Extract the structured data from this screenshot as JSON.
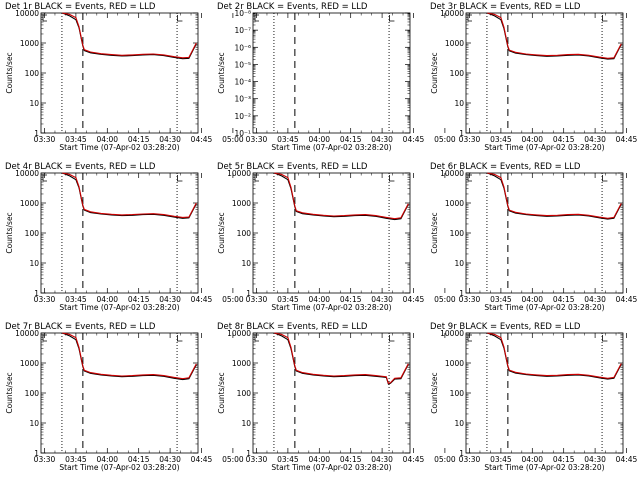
{
  "page": {
    "title": "RHESSI detector count rates, Events vs LLD"
  },
  "colors": {
    "events": "#000000",
    "lld": "#cc0000",
    "axis": "#000000",
    "background": "#ffffff"
  },
  "chart_data": [
    {
      "panel": "det1r",
      "title": "Det 1r BLACK = Events, RED = LLD",
      "type": "line",
      "xlabel": "Start Time (07-Apr-02 03:28:20)",
      "ylabel": "Counts/sec",
      "xticks": [
        "03:30",
        "03:45",
        "04:00",
        "04:15",
        "04:30",
        "04:45",
        "05:00"
      ],
      "yticks": [
        "1",
        "10",
        "100",
        "1000",
        "10000"
      ],
      "ylim": [
        1,
        10000
      ],
      "yscale": "log",
      "xlim_min": [
        -1.67,
        73.33
      ],
      "dotted_lines_min": [
        8.33,
        63.33
      ],
      "dashed_lines_min": [
        18.33
      ],
      "series": [
        {
          "name": "Events",
          "x_min": [
            8.5,
            12,
            15,
            16.5,
            18.3,
            19,
            22,
            27,
            32,
            37,
            42,
            47,
            52,
            57,
            62,
            66,
            69,
            72.5
          ],
          "values": [
            10000,
            8000,
            6000,
            3200,
            800,
            560,
            470,
            420,
            390,
            370,
            380,
            400,
            410,
            380,
            330,
            300,
            310,
            950
          ]
        },
        {
          "name": "LLD",
          "x_min": [
            8.5,
            12,
            15,
            16.5,
            18.3,
            19,
            22,
            27,
            32,
            37,
            42,
            47,
            52,
            57,
            62,
            66,
            69,
            72.5
          ],
          "values": [
            10000,
            9000,
            7000,
            3500,
            850,
            600,
            500,
            440,
            410,
            390,
            400,
            420,
            430,
            400,
            350,
            320,
            330,
            1000
          ]
        }
      ]
    },
    {
      "panel": "det2r",
      "title": "Det 2r BLACK = Events, RED = LLD",
      "type": "line",
      "xlabel": "Start Time (07-Apr-02 03:28:20)",
      "ylabel": "Counts/sec",
      "xticks": [
        "03:30",
        "03:45",
        "04:00",
        "04:15",
        "04:30",
        "04:45",
        "05:00"
      ],
      "yticks": [
        "10⁻¹",
        "10⁻²",
        "10⁻³",
        "10⁻⁴",
        "10⁻⁵",
        "10⁻⁶",
        "10⁻⁷",
        "10⁻⁸"
      ],
      "ylim": [
        1,
        1e-08
      ],
      "yscale": "log",
      "xlim_min": [
        -1.67,
        73.33
      ],
      "dotted_lines_min": [
        8.33,
        63.33
      ],
      "dashed_lines_min": [
        18.33
      ],
      "series": []
    },
    {
      "panel": "det3r",
      "title": "Det 3r BLACK = Events, RED = LLD",
      "type": "line",
      "xlabel": "Start Time (07-Apr-02 03:28:20)",
      "ylabel": "Counts/sec",
      "xticks": [
        "03:30",
        "03:45",
        "04:00",
        "04:15",
        "04:30",
        "04:45",
        "05:00"
      ],
      "yticks": [
        "1",
        "10",
        "100",
        "1000",
        "10000"
      ],
      "ylim": [
        1,
        10000
      ],
      "yscale": "log",
      "xlim_min": [
        -1.67,
        73.33
      ],
      "dotted_lines_min": [
        8.33,
        63.33
      ],
      "dashed_lines_min": [
        18.33
      ],
      "series": [
        {
          "name": "Events",
          "x_min": [
            8.5,
            12,
            15,
            16.5,
            18.3,
            19,
            22,
            27,
            32,
            37,
            42,
            47,
            52,
            57,
            62,
            66,
            69,
            72.5
          ],
          "values": [
            10000,
            8000,
            6000,
            3000,
            750,
            550,
            460,
            410,
            380,
            360,
            370,
            390,
            400,
            370,
            320,
            290,
            300,
            900
          ]
        },
        {
          "name": "LLD",
          "x_min": [
            8.5,
            12,
            15,
            16.5,
            18.3,
            19,
            22,
            27,
            32,
            37,
            42,
            47,
            52,
            57,
            62,
            66,
            69,
            72.5
          ],
          "values": [
            10000,
            9000,
            7000,
            3300,
            800,
            580,
            490,
            430,
            400,
            380,
            390,
            410,
            420,
            390,
            340,
            310,
            320,
            950
          ]
        }
      ]
    },
    {
      "panel": "det4r",
      "title": "Det 4r BLACK = Events, RED = LLD",
      "type": "line",
      "xlabel": "Start Time (07-Apr-02 03:28:20)",
      "ylabel": "Counts/sec",
      "xticks": [
        "03:30",
        "03:45",
        "04:00",
        "04:15",
        "04:30",
        "04:45",
        "05:00"
      ],
      "yticks": [
        "1",
        "10",
        "100",
        "1000",
        "10000"
      ],
      "ylim": [
        1,
        10000
      ],
      "yscale": "log",
      "xlim_min": [
        -1.67,
        73.33
      ],
      "dotted_lines_min": [
        8.33,
        63.33
      ],
      "dashed_lines_min": [
        18.33
      ],
      "series": [
        {
          "name": "Events",
          "x_min": [
            8.5,
            12,
            15,
            16.5,
            18.3,
            19,
            22,
            27,
            32,
            37,
            42,
            47,
            52,
            57,
            62,
            66,
            69,
            72.5
          ],
          "values": [
            10000,
            8000,
            6000,
            3200,
            800,
            580,
            480,
            430,
            400,
            380,
            390,
            410,
            420,
            390,
            340,
            310,
            320,
            950
          ]
        },
        {
          "name": "LLD",
          "x_min": [
            8.5,
            12,
            15,
            16.5,
            18.3,
            19,
            22,
            27,
            32,
            37,
            42,
            47,
            52,
            57,
            62,
            66,
            69,
            72.5
          ],
          "values": [
            10000,
            9000,
            7000,
            3500,
            850,
            610,
            510,
            450,
            420,
            400,
            410,
            430,
            440,
            410,
            360,
            330,
            340,
            1000
          ]
        }
      ]
    },
    {
      "panel": "det5r",
      "title": "Det 5r BLACK = Events, RED = LLD",
      "type": "line",
      "xlabel": "Start Time (07-Apr-02 03:28:20)",
      "ylabel": "Counts/sec",
      "xticks": [
        "03:30",
        "03:45",
        "04:00",
        "04:15",
        "04:30",
        "04:45",
        "05:00"
      ],
      "yticks": [
        "1",
        "10",
        "100",
        "1000",
        "10000"
      ],
      "ylim": [
        1,
        10000
      ],
      "yscale": "log",
      "xlim_min": [
        -1.67,
        73.33
      ],
      "dotted_lines_min": [
        8.33,
        63.33
      ],
      "dashed_lines_min": [
        18.33
      ],
      "series": [
        {
          "name": "Events",
          "x_min": [
            8.5,
            12,
            15,
            16.5,
            18.3,
            19,
            22,
            27,
            32,
            37,
            42,
            47,
            52,
            57,
            62,
            66,
            69,
            72.5
          ],
          "values": [
            10000,
            8000,
            6000,
            3000,
            750,
            520,
            440,
            400,
            370,
            350,
            360,
            380,
            390,
            360,
            310,
            280,
            300,
            900
          ]
        },
        {
          "name": "LLD",
          "x_min": [
            8.5,
            12,
            15,
            16.5,
            18.3,
            19,
            22,
            27,
            32,
            37,
            42,
            47,
            52,
            57,
            62,
            66,
            69,
            72.5
          ],
          "values": [
            10000,
            9000,
            7000,
            3300,
            800,
            550,
            470,
            420,
            390,
            370,
            380,
            400,
            410,
            380,
            330,
            300,
            320,
            950
          ]
        }
      ]
    },
    {
      "panel": "det6r",
      "title": "Det 6r BLACK = Events, RED = LLD",
      "type": "line",
      "xlabel": "Start Time (07-Apr-02 03:28:20)",
      "ylabel": "Counts/sec",
      "xticks": [
        "03:30",
        "03:45",
        "04:00",
        "04:15",
        "04:30",
        "04:45",
        "05:00"
      ],
      "yticks": [
        "1",
        "10",
        "100",
        "1000",
        "10000"
      ],
      "ylim": [
        1,
        10000
      ],
      "yscale": "log",
      "xlim_min": [
        -1.67,
        73.33
      ],
      "dotted_lines_min": [
        8.33,
        63.33
      ],
      "dashed_lines_min": [
        18.33
      ],
      "series": [
        {
          "name": "Events",
          "x_min": [
            8.5,
            12,
            15,
            16.5,
            18.3,
            19,
            22,
            27,
            32,
            37,
            42,
            47,
            52,
            57,
            62,
            66,
            69,
            72.5
          ],
          "values": [
            10000,
            8000,
            6000,
            3100,
            780,
            550,
            460,
            410,
            380,
            360,
            370,
            390,
            400,
            370,
            320,
            290,
            310,
            920
          ]
        },
        {
          "name": "LLD",
          "x_min": [
            8.5,
            12,
            15,
            16.5,
            18.3,
            19,
            22,
            27,
            32,
            37,
            42,
            47,
            52,
            57,
            62,
            66,
            69,
            72.5
          ],
          "values": [
            10000,
            9000,
            7000,
            3400,
            830,
            580,
            490,
            430,
            400,
            380,
            390,
            410,
            420,
            390,
            340,
            310,
            330,
            970
          ]
        }
      ]
    },
    {
      "panel": "det7r",
      "title": "Det 7r BLACK = Events, RED = LLD",
      "type": "line",
      "xlabel": "Start Time (07-Apr-02 03:28:20)",
      "ylabel": "Counts/sec",
      "xticks": [
        "03:30",
        "03:45",
        "04:00",
        "04:15",
        "04:30",
        "04:45",
        "05:00"
      ],
      "yticks": [
        "1",
        "10",
        "100",
        "1000",
        "10000"
      ],
      "ylim": [
        1,
        10000
      ],
      "yscale": "log",
      "xlim_min": [
        -1.67,
        73.33
      ],
      "dotted_lines_min": [
        8.33,
        63.33
      ],
      "dashed_lines_min": [
        18.33
      ],
      "series": [
        {
          "name": "Events",
          "x_min": [
            8.5,
            12,
            15,
            16.5,
            18.3,
            19,
            22,
            27,
            32,
            37,
            42,
            47,
            52,
            57,
            62,
            66,
            69,
            72.5
          ],
          "values": [
            10000,
            8000,
            6000,
            3000,
            760,
            540,
            450,
            400,
            370,
            350,
            360,
            380,
            390,
            360,
            310,
            280,
            300,
            880
          ]
        },
        {
          "name": "LLD",
          "x_min": [
            8.5,
            12,
            15,
            16.5,
            18.3,
            19,
            22,
            27,
            32,
            37,
            42,
            47,
            52,
            57,
            62,
            66,
            69,
            72.5
          ],
          "values": [
            10000,
            9000,
            7000,
            3300,
            810,
            570,
            480,
            420,
            390,
            370,
            380,
            400,
            410,
            380,
            330,
            300,
            320,
            930
          ]
        }
      ]
    },
    {
      "panel": "det8r",
      "title": "Det 8r BLACK = Events, RED = LLD",
      "type": "line",
      "xlabel": "Start Time (07-Apr-02 03:28:20)",
      "ylabel": "Counts/sec",
      "xticks": [
        "03:30",
        "03:45",
        "04:00",
        "04:15",
        "04:30",
        "04:45",
        "05:00"
      ],
      "yticks": [
        "1",
        "10",
        "100",
        "1000",
        "10000"
      ],
      "ylim": [
        1,
        10000
      ],
      "yscale": "log",
      "xlim_min": [
        -1.67,
        73.33
      ],
      "dotted_lines_min": [
        8.33,
        63.33
      ],
      "dashed_lines_min": [
        18.33
      ],
      "series": [
        {
          "name": "Events",
          "x_min": [
            8.5,
            12,
            15,
            16.5,
            18.3,
            19,
            22,
            27,
            32,
            37,
            42,
            47,
            52,
            57,
            62,
            63,
            64,
            66,
            69,
            72.5
          ],
          "values": [
            10000,
            8000,
            6000,
            3000,
            760,
            540,
            450,
            400,
            370,
            350,
            360,
            380,
            390,
            360,
            330,
            200,
            210,
            290,
            300,
            900
          ]
        },
        {
          "name": "LLD",
          "x_min": [
            8.5,
            12,
            15,
            16.5,
            18.3,
            19,
            22,
            27,
            32,
            37,
            42,
            47,
            52,
            57,
            62,
            63,
            64,
            66,
            69,
            72.5
          ],
          "values": [
            10000,
            9000,
            7000,
            3300,
            810,
            570,
            480,
            420,
            390,
            370,
            380,
            400,
            410,
            380,
            350,
            210,
            220,
            310,
            320,
            950
          ]
        }
      ]
    },
    {
      "panel": "det9r",
      "title": "Det 9r BLACK = Events, RED = LLD",
      "type": "line",
      "xlabel": "Start Time (07-Apr-02 03:28:20)",
      "ylabel": "Counts/sec",
      "xticks": [
        "03:30",
        "03:45",
        "04:00",
        "04:15",
        "04:30",
        "04:45",
        "05:00"
      ],
      "yticks": [
        "1",
        "10",
        "100",
        "1000",
        "10000"
      ],
      "ylim": [
        1,
        10000
      ],
      "yscale": "log",
      "xlim_min": [
        -1.67,
        73.33
      ],
      "dotted_lines_min": [
        8.33,
        63.33
      ],
      "dashed_lines_min": [
        18.33
      ],
      "series": [
        {
          "name": "Events",
          "x_min": [
            8.5,
            12,
            15,
            16.5,
            18.3,
            19,
            22,
            27,
            32,
            37,
            42,
            47,
            52,
            57,
            62,
            66,
            69,
            72.5
          ],
          "values": [
            10000,
            8000,
            6000,
            3100,
            770,
            550,
            460,
            410,
            380,
            360,
            370,
            390,
            400,
            370,
            320,
            290,
            310,
            910
          ]
        },
        {
          "name": "LLD",
          "x_min": [
            8.5,
            12,
            15,
            16.5,
            18.3,
            19,
            22,
            27,
            32,
            37,
            42,
            47,
            52,
            57,
            62,
            66,
            69,
            72.5
          ],
          "values": [
            10000,
            9000,
            7000,
            3400,
            820,
            580,
            490,
            430,
            400,
            380,
            390,
            410,
            420,
            390,
            340,
            310,
            330,
            960
          ]
        }
      ]
    }
  ]
}
